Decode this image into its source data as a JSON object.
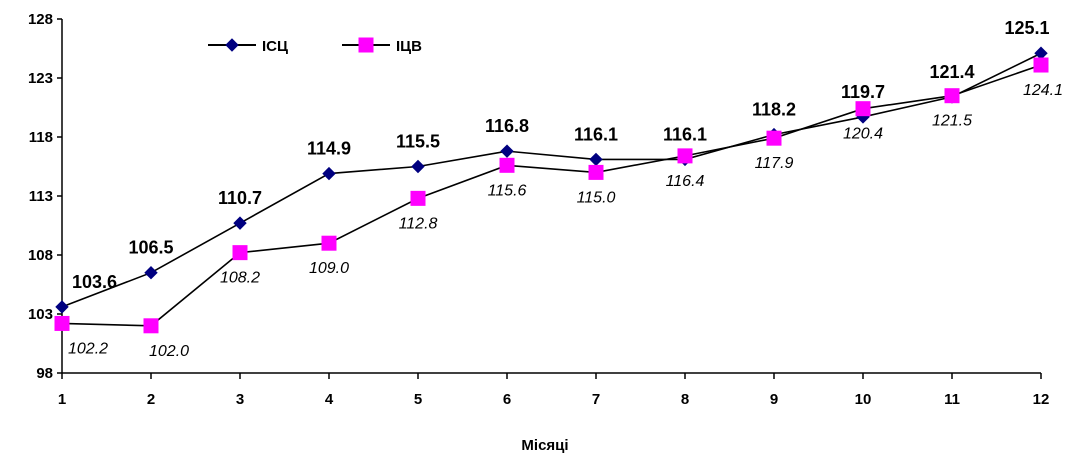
{
  "chart_data": {
    "type": "line",
    "x": [
      1,
      2,
      3,
      4,
      5,
      6,
      7,
      8,
      9,
      10,
      11,
      12
    ],
    "series": [
      {
        "name": "ІСЦ",
        "values": [
          103.6,
          106.5,
          110.7,
          114.9,
          115.5,
          116.8,
          116.1,
          116.1,
          118.2,
          119.7,
          121.4,
          125.1
        ],
        "labels": [
          "103.6",
          "106.5",
          "110.7",
          "114.9",
          "115.5",
          "116.8",
          "116.1",
          "116.1",
          "118.2",
          "119.7",
          "121.4",
          "125.1"
        ],
        "color": "#000080",
        "marker": "diamond"
      },
      {
        "name": "ІЦВ",
        "values": [
          102.2,
          102.0,
          108.2,
          109.0,
          112.8,
          115.6,
          115.0,
          116.4,
          117.9,
          120.4,
          121.5,
          124.1
        ],
        "labels": [
          "102.2",
          "102.0",
          "108.2",
          "109.0",
          "112.8",
          "115.6",
          "115.0",
          "116.4",
          "117.9",
          "120.4",
          "121.5",
          "124.1"
        ],
        "color": "#FF00FF",
        "marker": "square"
      }
    ],
    "xlabel": "Місяці",
    "ylabel": "",
    "ylim": [
      98,
      128
    ],
    "yticks": [
      "98",
      "103",
      "108",
      "113",
      "118",
      "123",
      "128"
    ],
    "xticks": [
      "1",
      "2",
      "3",
      "4",
      "5",
      "6",
      "7",
      "8",
      "9",
      "10",
      "11",
      "12"
    ],
    "grid": false,
    "legend": "top-left"
  }
}
